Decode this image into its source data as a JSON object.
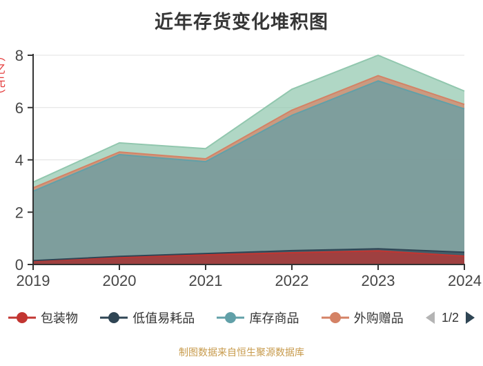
{
  "title": "近年存货变化堆积图",
  "y_axis_unit_fragment": "（亿元）",
  "footer": "制图数据来自恒生聚源数据库",
  "colors": {
    "axis": "#333333",
    "grid": "#e0e0e0",
    "tick_label": "#464646",
    "title": "#363636",
    "footer": "#c79a4b",
    "unit_label": "#e43b3b"
  },
  "legend": {
    "items": [
      {
        "label": "包装物",
        "color": "#c23531"
      },
      {
        "label": "低值易耗品",
        "color": "#2f4554"
      },
      {
        "label": "库存商品",
        "color": "#61a0a8"
      },
      {
        "label": "外购赠品",
        "color": "#d48265"
      }
    ],
    "pager": {
      "current": "1/2",
      "prev_color": "#b4b4b4",
      "next_color": "#2f4554"
    }
  },
  "chart_data": {
    "type": "area",
    "stacked": true,
    "title": "近年存货变化堆积图",
    "x": [
      "2019",
      "2020",
      "2021",
      "2022",
      "2023",
      "2024"
    ],
    "series": [
      {
        "name": "包装物",
        "color": "#c23531",
        "values": [
          0.13,
          0.27,
          0.37,
          0.45,
          0.52,
          0.32
        ]
      },
      {
        "name": "低值易耗品",
        "color": "#2f4554",
        "values": [
          0.02,
          0.04,
          0.05,
          0.08,
          0.08,
          0.15
        ]
      },
      {
        "name": "库存商品",
        "color": "#61a0a8",
        "values": [
          2.65,
          3.89,
          3.51,
          5.17,
          6.42,
          5.48
        ]
      },
      {
        "name": "外购赠品",
        "color": "#d48265",
        "values": [
          0.13,
          0.1,
          0.11,
          0.2,
          0.2,
          0.17
        ]
      },
      {
        "name": "",
        "color": "#91c7ae",
        "values": [
          0.22,
          0.35,
          0.39,
          0.8,
          0.78,
          0.51
        ]
      }
    ],
    "ylim": [
      0,
      8
    ],
    "yticks": [
      0,
      2,
      4,
      6,
      8
    ],
    "grid": true,
    "legend_position": "bottom",
    "area_opacity": 0.72
  }
}
